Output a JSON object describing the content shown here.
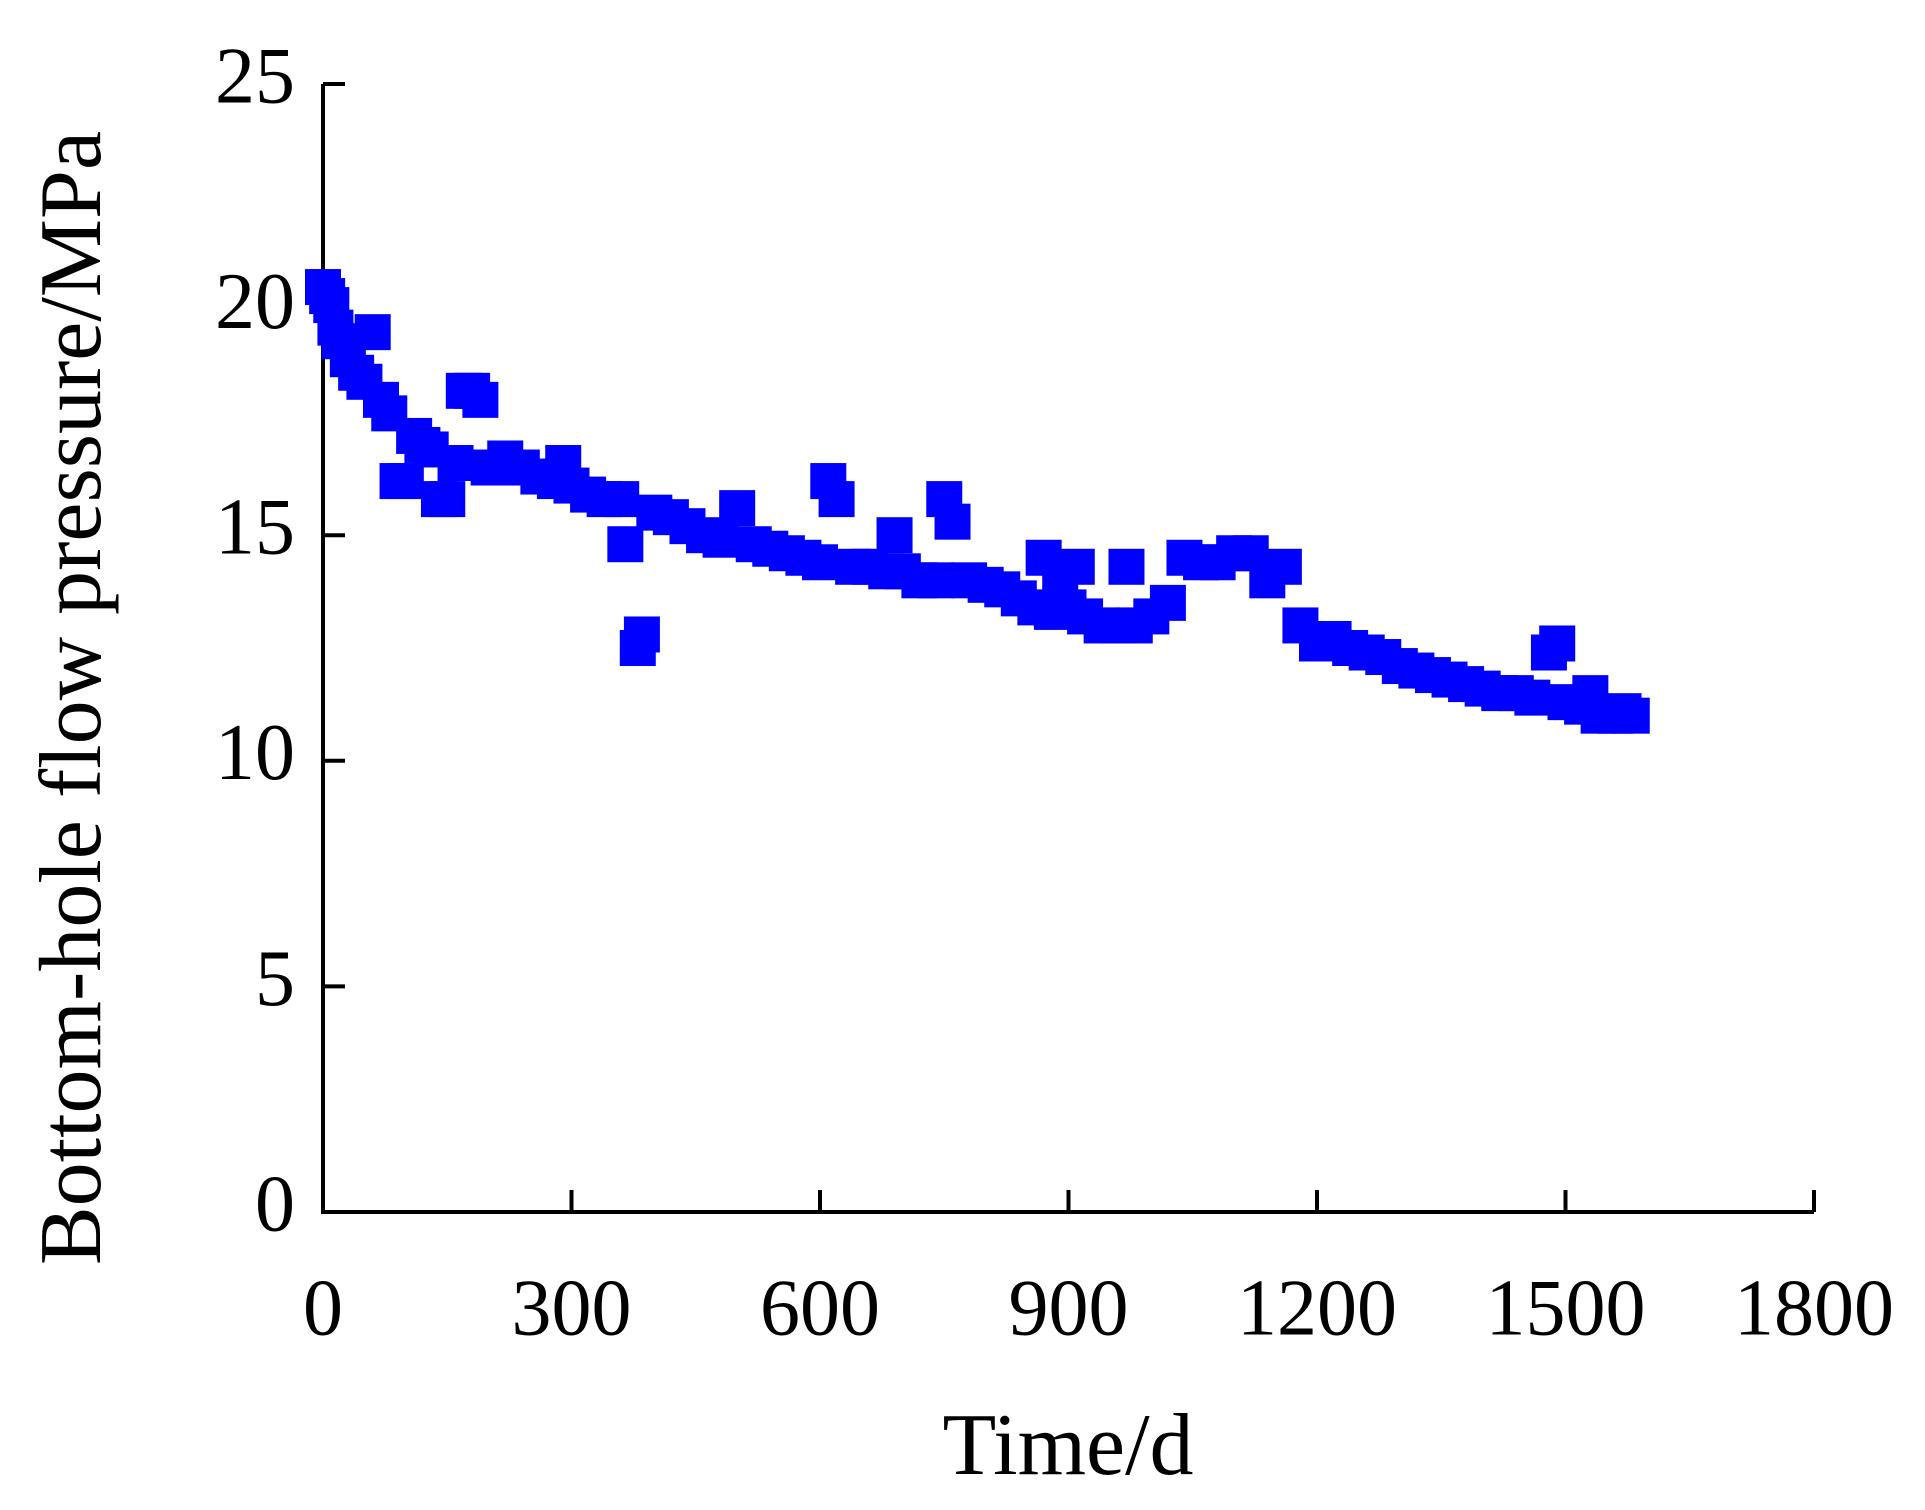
{
  "chart_data": {
    "type": "scatter",
    "x_label": "Time/d",
    "y_label": "Bottom-hole flow pressure/MPa",
    "series": [
      {
        "color": "#0000ff",
        "x": [
          0,
          5,
          10,
          15,
          20,
          30,
          40,
          50,
          60,
          70,
          80,
          90,
          100,
          110,
          120,
          130,
          140,
          150,
          160,
          170,
          180,
          190,
          200,
          220,
          240,
          260,
          280,
          290,
          300,
          320,
          340,
          360,
          365,
          380,
          385,
          400,
          420,
          440,
          460,
          480,
          500,
          520,
          540,
          560,
          580,
          600,
          610,
          620,
          640,
          660,
          680,
          690,
          700,
          720,
          740,
          750,
          760,
          780,
          800,
          820,
          840,
          860,
          870,
          880,
          890,
          900,
          910,
          920,
          940,
          960,
          970,
          980,
          1000,
          1020,
          1040,
          1060,
          1080,
          1100,
          1120,
          1140,
          1160,
          1180,
          1200,
          1220,
          1240,
          1260,
          1280,
          1300,
          1320,
          1340,
          1360,
          1380,
          1400,
          1420,
          1440,
          1460,
          1480,
          1490,
          1500,
          1520,
          1530,
          1540,
          1560,
          1570,
          1580
        ],
        "values": [
          20.5,
          20.3,
          20.1,
          19.6,
          19.3,
          18.9,
          18.6,
          18.4,
          19.5,
          18.0,
          17.7,
          16.2,
          16.2,
          17.2,
          17.0,
          16.9,
          15.8,
          15.8,
          16.6,
          18.2,
          18.2,
          18.0,
          16.5,
          16.7,
          16.5,
          16.3,
          16.2,
          16.6,
          16.1,
          15.9,
          15.8,
          15.8,
          14.8,
          12.5,
          12.8,
          15.5,
          15.4,
          15.2,
          15.0,
          14.9,
          15.6,
          14.8,
          14.7,
          14.6,
          14.5,
          14.4,
          16.2,
          15.8,
          14.3,
          14.3,
          14.2,
          15.0,
          14.2,
          14.0,
          14.0,
          15.8,
          15.3,
          14.0,
          13.9,
          13.8,
          13.6,
          13.4,
          14.5,
          13.3,
          14.0,
          13.4,
          14.3,
          13.2,
          13.0,
          13.0,
          14.3,
          13.0,
          13.2,
          13.5,
          14.5,
          14.4,
          14.4,
          14.6,
          14.6,
          14.0,
          14.3,
          13.0,
          12.6,
          12.7,
          12.5,
          12.4,
          12.3,
          12.1,
          12.0,
          11.9,
          11.8,
          11.7,
          11.6,
          11.5,
          11.5,
          11.4,
          12.4,
          12.6,
          11.3,
          11.2,
          11.5,
          11.0,
          11.0,
          11.1,
          11.0
        ]
      }
    ],
    "xlim": [
      0,
      1800
    ],
    "xticks": [
      0,
      300,
      600,
      900,
      1200,
      1500,
      1800
    ],
    "ylim": [
      0,
      25
    ],
    "yticks": [
      0,
      5,
      10,
      15,
      20,
      25
    ],
    "marker": "square"
  }
}
